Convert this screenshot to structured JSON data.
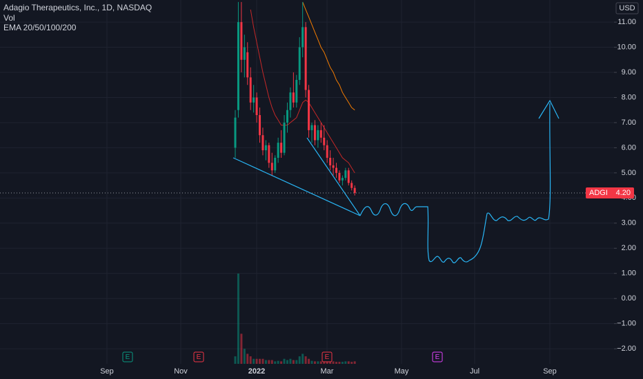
{
  "chart_data": {
    "type": "candlestick",
    "title": "Adagio Therapeutics, Inc., 1D, NASDAQ",
    "indicators": [
      "Vol",
      "EMA 20/50/100/200"
    ],
    "currency": "USD",
    "x_labels": [
      "Sep",
      "Nov",
      "2022",
      "Mar",
      "May",
      "Jul",
      "Sep"
    ],
    "ylim": [
      -2.6,
      11.88
    ],
    "yticks": [
      {
        "value": 11,
        "label": "11.00"
      },
      {
        "value": 10,
        "label": "10.00"
      },
      {
        "value": 9,
        "label": "9.00"
      },
      {
        "value": 8,
        "label": "8.00"
      },
      {
        "value": 7,
        "label": "7.00"
      },
      {
        "value": 6,
        "label": "6.00"
      },
      {
        "value": 5,
        "label": "5.00"
      },
      {
        "value": 4,
        "label": "4.00"
      },
      {
        "value": 3,
        "label": "3.00"
      },
      {
        "value": 2,
        "label": "2.00"
      },
      {
        "value": 1,
        "label": "1.00"
      },
      {
        "value": 0,
        "label": "0.00"
      },
      {
        "value": -1,
        "label": "−1.00"
      },
      {
        "value": -2,
        "label": "−2.00"
      }
    ],
    "grid": true,
    "up_color": "#089981",
    "down_color": "#f23645",
    "last_price": {
      "symbol": "ADGI",
      "value": 4.2,
      "label": "4.20"
    },
    "candles": [
      {
        "open": 6.0,
        "high": 7.5,
        "low": 5.6,
        "close": 7.2
      },
      {
        "open": 7.5,
        "high": 11.8,
        "low": 7.2,
        "close": 11.0
      },
      {
        "open": 11.0,
        "high": 11.8,
        "low": 9.0,
        "close": 9.5
      },
      {
        "open": 9.5,
        "high": 10.5,
        "low": 8.8,
        "close": 10.0
      },
      {
        "open": 9.8,
        "high": 10.2,
        "low": 8.5,
        "close": 8.8
      },
      {
        "open": 8.8,
        "high": 9.2,
        "low": 7.5,
        "close": 7.8
      },
      {
        "open": 7.8,
        "high": 8.5,
        "low": 7.4,
        "close": 8.0
      },
      {
        "open": 8.0,
        "high": 8.2,
        "low": 7.0,
        "close": 7.3
      },
      {
        "open": 7.3,
        "high": 7.6,
        "low": 6.2,
        "close": 6.5
      },
      {
        "open": 6.5,
        "high": 6.8,
        "low": 5.7,
        "close": 5.9
      },
      {
        "open": 5.9,
        "high": 6.3,
        "low": 5.5,
        "close": 6.1
      },
      {
        "open": 6.1,
        "high": 6.2,
        "low": 5.2,
        "close": 5.4
      },
      {
        "open": 5.4,
        "high": 5.8,
        "low": 4.9,
        "close": 5.1
      },
      {
        "open": 5.1,
        "high": 5.7,
        "low": 5.0,
        "close": 5.6
      },
      {
        "open": 5.6,
        "high": 6.4,
        "low": 5.4,
        "close": 6.2
      },
      {
        "open": 6.2,
        "high": 6.7,
        "low": 5.6,
        "close": 5.8
      },
      {
        "open": 5.8,
        "high": 7.3,
        "low": 5.7,
        "close": 7.0
      },
      {
        "open": 7.0,
        "high": 7.8,
        "low": 6.6,
        "close": 7.5
      },
      {
        "open": 7.5,
        "high": 8.4,
        "low": 7.2,
        "close": 8.2
      },
      {
        "open": 8.2,
        "high": 9.0,
        "low": 7.6,
        "close": 7.8
      },
      {
        "open": 7.8,
        "high": 8.9,
        "low": 7.6,
        "close": 8.7
      },
      {
        "open": 8.7,
        "high": 10.4,
        "low": 8.5,
        "close": 10.0
      },
      {
        "open": 10.0,
        "high": 11.8,
        "low": 9.6,
        "close": 10.8
      },
      {
        "open": 10.8,
        "high": 11.0,
        "low": 8.0,
        "close": 8.3
      },
      {
        "open": 8.3,
        "high": 8.5,
        "low": 6.4,
        "close": 6.7
      },
      {
        "open": 6.7,
        "high": 7.0,
        "low": 6.2,
        "close": 6.9
      },
      {
        "open": 6.9,
        "high": 7.1,
        "low": 6.1,
        "close": 6.3
      },
      {
        "open": 6.3,
        "high": 6.9,
        "low": 6.0,
        "close": 6.7
      },
      {
        "open": 6.7,
        "high": 7.0,
        "low": 6.2,
        "close": 6.4
      },
      {
        "open": 6.4,
        "high": 6.9,
        "low": 5.9,
        "close": 6.1
      },
      {
        "open": 6.1,
        "high": 6.3,
        "low": 5.4,
        "close": 5.6
      },
      {
        "open": 5.6,
        "high": 5.9,
        "low": 5.1,
        "close": 5.3
      },
      {
        "open": 5.3,
        "high": 5.6,
        "low": 4.9,
        "close": 5.2
      },
      {
        "open": 5.2,
        "high": 5.4,
        "low": 4.8,
        "close": 5.0
      },
      {
        "open": 5.0,
        "high": 5.1,
        "low": 4.6,
        "close": 4.7
      },
      {
        "open": 4.7,
        "high": 4.9,
        "low": 4.5,
        "close": 4.8
      },
      {
        "open": 4.8,
        "high": 5.2,
        "low": 4.7,
        "close": 5.1
      },
      {
        "open": 5.1,
        "high": 5.2,
        "low": 4.5,
        "close": 4.6
      },
      {
        "open": 4.6,
        "high": 4.7,
        "low": 4.3,
        "close": 4.4
      },
      {
        "open": 4.4,
        "high": 4.5,
        "low": 4.1,
        "close": 4.2
      }
    ],
    "volume": [
      3,
      36,
      12,
      6,
      4,
      3,
      2,
      2,
      2,
      2,
      1.5,
      1.5,
      1.5,
      1,
      1.2,
      1,
      2,
      1.5,
      2,
      1.5,
      1.5,
      3,
      4,
      3,
      2,
      1.2,
      1,
      1,
      1,
      1,
      1,
      1,
      1,
      0.8,
      0.8,
      0.8,
      1,
      1,
      0.8,
      1
    ],
    "vlim": [
      0,
      36
    ],
    "series": [
      {
        "name": "EMA 20",
        "color": "#c62828",
        "values": [
          null,
          null,
          null,
          null,
          null,
          11.5,
          10.8,
          10.2,
          9.6,
          9.0,
          8.5,
          8.0,
          7.6,
          7.3,
          7.1,
          6.9,
          6.9,
          6.9,
          7.0,
          7.1,
          7.2,
          7.5,
          7.8,
          7.9,
          7.8,
          7.6,
          7.4,
          7.2,
          7.0,
          6.8,
          6.6,
          6.4,
          6.2,
          6.0,
          5.8,
          5.6,
          5.5,
          5.4,
          5.2,
          5.0
        ]
      },
      {
        "name": "EMA 50",
        "color": "#f57c00",
        "values": [
          null,
          null,
          null,
          null,
          null,
          null,
          null,
          null,
          null,
          null,
          null,
          null,
          null,
          null,
          null,
          null,
          null,
          null,
          null,
          null,
          null,
          null,
          11.8,
          11.5,
          11.2,
          10.9,
          10.6,
          10.3,
          10.0,
          9.8,
          9.5,
          9.2,
          9.0,
          8.7,
          8.5,
          8.2,
          8.0,
          7.8,
          7.6,
          7.5
        ]
      }
    ],
    "events": [
      {
        "label": "E",
        "color": "#089981"
      },
      {
        "label": "E",
        "color": "#f23645"
      },
      {
        "label": "E",
        "color": "#f23645"
      },
      {
        "label": "E",
        "color": "#e040fb"
      }
    ]
  }
}
